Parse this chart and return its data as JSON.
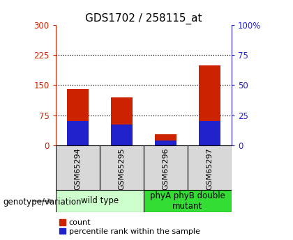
{
  "title": "GDS1702 / 258115_at",
  "samples": [
    "GSM65294",
    "GSM65295",
    "GSM65296",
    "GSM65297"
  ],
  "count_values": [
    140,
    120,
    28,
    200
  ],
  "percentile_values": [
    20,
    17,
    4,
    20
  ],
  "left_ylim": [
    0,
    300
  ],
  "right_ylim": [
    0,
    100
  ],
  "left_yticks": [
    0,
    75,
    150,
    225,
    300
  ],
  "right_yticks": [
    0,
    25,
    50,
    75,
    100
  ],
  "right_yticklabels": [
    "0",
    "25",
    "50",
    "75",
    "100%"
  ],
  "bar_color_red": "#CC2200",
  "bar_color_blue": "#2222CC",
  "dotted_lines": [
    75,
    150,
    225
  ],
  "groups": [
    {
      "label": "wild type",
      "indices": [
        0,
        1
      ],
      "color": "#ccffcc"
    },
    {
      "label": "phyA phyB double\nmutant",
      "indices": [
        2,
        3
      ],
      "color": "#33dd33"
    }
  ],
  "group_label": "genotype/variation",
  "legend_items": [
    {
      "color": "#CC2200",
      "label": "count"
    },
    {
      "color": "#2222CC",
      "label": "percentile rank within the sample"
    }
  ],
  "left_tick_color": "#CC2200",
  "right_tick_color": "#2222CC",
  "bar_width": 0.5,
  "title_fontsize": 11,
  "tick_fontsize": 8.5,
  "sample_label_fontsize": 8,
  "group_label_fontsize": 8.5,
  "legend_fontsize": 8
}
